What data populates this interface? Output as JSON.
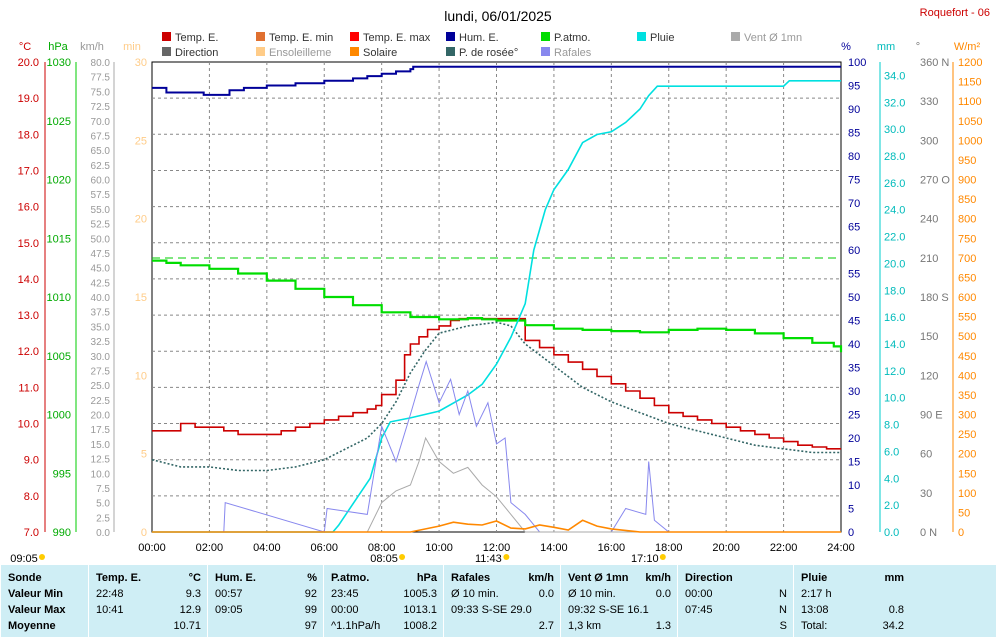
{
  "title": "lundi, 06/01/2025",
  "station": "Roquefort - 06",
  "legend": [
    {
      "label": "Temp. E.",
      "color": "#cc0000"
    },
    {
      "label": "Temp. E. min",
      "color": "#e07030"
    },
    {
      "label": "Temp. E. max",
      "color": "#ff0000"
    },
    {
      "label": "Hum. E.",
      "color": "#000099"
    },
    {
      "label": "P.atmo.",
      "color": "#00dd00"
    },
    {
      "label": "Pluie",
      "color": "#00e0e0"
    },
    {
      "label": "Vent Ø 1mn",
      "color": "#aaaaaa"
    },
    {
      "label": "Direction",
      "color": "#666666"
    },
    {
      "label": "Ensoleilleme",
      "color": "#ffcc88"
    },
    {
      "label": "Solaire",
      "color": "#ff8800"
    },
    {
      "label": "P. de rosée°",
      "color": "#336666"
    },
    {
      "label": "Rafales",
      "color": "#8888ee"
    }
  ],
  "axes": {
    "temp": {
      "unit": "°C",
      "ticks": [
        "20.0",
        "19.0",
        "18.0",
        "17.0",
        "16.0",
        "15.0",
        "14.0",
        "13.0",
        "12.0",
        "11.0",
        "10.0",
        "9.0",
        "8.0",
        "7.0"
      ]
    },
    "pressure": {
      "unit": "hPa",
      "ticks": [
        "1030",
        "1025",
        "1020",
        "1015",
        "1010",
        "1005",
        "1000",
        "995",
        "990"
      ]
    },
    "wind": {
      "unit": "km/h",
      "ticks": [
        "80.0",
        "77.5",
        "75.0",
        "72.5",
        "70.0",
        "67.5",
        "65.0",
        "62.5",
        "60.0",
        "57.5",
        "55.0",
        "52.5",
        "50.0",
        "47.5",
        "45.0",
        "42.5",
        "40.0",
        "37.5",
        "35.0",
        "32.5",
        "30.0",
        "27.5",
        "25.0",
        "22.5",
        "20.0",
        "17.5",
        "15.0",
        "12.5",
        "10.0",
        "7.5",
        "5.0",
        "2.5",
        "0.0"
      ]
    },
    "sunshine": {
      "unit": "min",
      "ticks": [
        "30",
        "25",
        "20",
        "15",
        "10",
        "5",
        "0"
      ]
    },
    "humidity": {
      "unit": "%",
      "ticks": [
        "100",
        "95",
        "90",
        "85",
        "80",
        "75",
        "70",
        "65",
        "60",
        "55",
        "50",
        "45",
        "40",
        "35",
        "30",
        "25",
        "20",
        "15",
        "10",
        "5",
        "0"
      ]
    },
    "rain": {
      "unit": "mm",
      "ticks": [
        "34.0",
        "32.0",
        "30.0",
        "28.0",
        "26.0",
        "24.0",
        "22.0",
        "20.0",
        "18.0",
        "16.0",
        "14.0",
        "12.0",
        "10.0",
        "8.0",
        "6.0",
        "4.0",
        "2.0",
        "0.0"
      ]
    },
    "direction": {
      "unit": "°",
      "ticks": [
        "360 N",
        "330",
        "300",
        "270 O",
        "240",
        "210",
        "180 S",
        "150",
        "120",
        "90  E",
        "60",
        "30",
        "0   N"
      ]
    },
    "solar": {
      "unit": "W/m²",
      "ticks": [
        "1200",
        "1150",
        "1100",
        "1050",
        "1000",
        "950",
        "900",
        "850",
        "800",
        "750",
        "700",
        "650",
        "600",
        "550",
        "500",
        "450",
        "400",
        "350",
        "300",
        "250",
        "200",
        "150",
        "100",
        "50",
        "0"
      ]
    },
    "time": {
      "ticks": [
        "00:00",
        "02:00",
        "04:00",
        "06:00",
        "08:00",
        "10:00",
        "12:00",
        "14:00",
        "16:00",
        "18:00",
        "20:00",
        "22:00",
        "24:00"
      ]
    }
  },
  "sun_markers": [
    "09:05",
    "08:05",
    "11:43",
    "17:10"
  ],
  "chart_data": {
    "type": "line",
    "x_range_hours": [
      0,
      24
    ],
    "series": [
      {
        "name": "Temp. E.",
        "unit": "°C",
        "color": "#cc0000",
        "x": [
          0,
          1,
          1.5,
          2,
          2.5,
          3,
          3.5,
          4,
          4.5,
          5,
          5.5,
          6,
          6.5,
          7,
          7.5,
          7.8,
          8,
          8.5,
          8.8,
          9,
          9.3,
          9.6,
          10,
          10.4,
          10.7,
          11,
          11.5,
          12,
          12.5,
          13,
          13.5,
          14,
          14.5,
          15,
          15.5,
          16,
          16.5,
          17,
          17.5,
          18,
          18.5,
          19,
          19.5,
          20,
          20.5,
          21,
          21.5,
          22,
          22.5,
          23,
          23.5,
          24
        ],
        "values": [
          9.8,
          10.0,
          9.9,
          9.9,
          9.8,
          9.7,
          9.7,
          9.7,
          9.8,
          9.9,
          10.0,
          10.1,
          10.2,
          10.3,
          10.4,
          10.5,
          10.8,
          11.2,
          11.9,
          12.2,
          12.4,
          12.6,
          12.7,
          12.85,
          12.9,
          12.9,
          12.9,
          12.9,
          12.9,
          12.3,
          12.1,
          11.9,
          11.7,
          11.5,
          11.3,
          11.1,
          10.9,
          10.7,
          10.5,
          10.3,
          10.2,
          10.1,
          10.0,
          9.9,
          9.8,
          9.7,
          9.6,
          9.5,
          9.4,
          9.35,
          9.3,
          9.3
        ]
      },
      {
        "name": "P. de rosée°",
        "unit": "°C",
        "color": "#336666",
        "x": [
          0,
          1,
          2,
          3,
          4,
          5,
          6,
          7,
          7.5,
          8,
          8.5,
          9,
          9.5,
          10,
          11,
          12,
          12.5,
          13,
          13.5,
          14,
          15,
          16,
          17,
          18,
          19,
          20,
          21,
          22,
          23,
          24
        ],
        "values": [
          9.0,
          8.8,
          8.8,
          8.7,
          8.7,
          8.8,
          9.0,
          9.4,
          9.6,
          10.0,
          10.6,
          11.4,
          12.0,
          12.5,
          12.7,
          12.8,
          12.7,
          12.2,
          11.9,
          11.6,
          11.0,
          10.6,
          10.3,
          10.0,
          9.8,
          9.6,
          9.4,
          9.3,
          9.2,
          9.2
        ]
      },
      {
        "name": "Hum. E.",
        "unit": "%",
        "color": "#000099",
        "x": [
          0,
          0.5,
          1,
          1.8,
          2.7,
          3.2,
          4,
          4.5,
          5,
          5.5,
          6,
          6.5,
          7,
          7.5,
          8,
          8.5,
          9,
          9.1,
          10,
          12,
          14,
          16,
          18,
          20,
          22,
          24
        ],
        "values": [
          94.5,
          93.5,
          93.5,
          93,
          94,
          94.5,
          95,
          95,
          95.5,
          95.5,
          96,
          96,
          96.5,
          97,
          97.5,
          98,
          98.5,
          99,
          99,
          99,
          99,
          99,
          99,
          99,
          99,
          99
        ]
      },
      {
        "name": "P.atmo.",
        "unit": "hPa",
        "color": "#00dd00",
        "x": [
          0,
          0.5,
          1,
          2,
          3,
          4,
          5,
          6,
          7,
          8,
          9,
          10,
          11,
          11.5,
          12,
          13,
          14,
          15,
          16,
          17,
          18,
          19,
          20,
          21,
          22,
          23,
          23.75,
          24
        ],
        "values": [
          1013.1,
          1012.9,
          1012.7,
          1012.4,
          1012.0,
          1011.4,
          1010.7,
          1010.0,
          1009.3,
          1008.7,
          1008.3,
          1008.1,
          1008.2,
          1008.1,
          1008.0,
          1007.6,
          1007.3,
          1007.2,
          1007.1,
          1007.0,
          1007.2,
          1007.3,
          1007.2,
          1006.9,
          1006.5,
          1006.1,
          1005.8,
          1005.3
        ]
      },
      {
        "name": "Pluie",
        "unit": "mm",
        "color": "#00e0e0",
        "x": [
          0,
          6.3,
          6.5,
          7,
          7.6,
          8,
          8.3,
          9,
          10,
          11,
          11.5,
          12,
          12.5,
          13,
          13.3,
          13.7,
          14,
          14.5,
          15,
          15.5,
          16,
          16.5,
          17,
          17.3,
          17.6,
          18,
          19,
          20,
          21,
          22,
          22.2,
          23,
          24
        ],
        "values": [
          0,
          0,
          0.5,
          2.1,
          4.0,
          7.0,
          8.2,
          8.5,
          9.0,
          10.2,
          11.0,
          12.5,
          14.5,
          17.0,
          21.0,
          24.0,
          25.5,
          27.0,
          29.0,
          29.6,
          29.8,
          30.5,
          31.5,
          32.5,
          33.2,
          33.2,
          33.2,
          33.2,
          33.2,
          33.2,
          33.6,
          33.6,
          33.6
        ]
      },
      {
        "name": "Rafales",
        "unit": "km/h",
        "color": "#8888ee",
        "x": [
          0,
          2.5,
          2.55,
          6,
          6.1,
          7.5,
          8,
          8.5,
          9,
          9.3,
          9.55,
          10,
          10.4,
          10.7,
          11,
          11.3,
          11.7,
          12,
          12.3,
          12.5,
          13,
          13.5,
          14,
          16,
          16.5,
          17.2,
          17.3,
          17.5,
          18,
          24
        ],
        "values": [
          0,
          0,
          5,
          0,
          4,
          3,
          18,
          12,
          20,
          25,
          29,
          22,
          26,
          20,
          24,
          18,
          22,
          15,
          16,
          5,
          3,
          0,
          0,
          0,
          4,
          3,
          12,
          2,
          0,
          0
        ]
      },
      {
        "name": "Vent Ø 1mn",
        "unit": "km/h",
        "color": "#aaaaaa",
        "x": [
          0,
          7.5,
          8,
          8.5,
          9,
          9.3,
          9.53,
          10,
          10.5,
          11,
          11.5,
          12,
          12.5,
          13,
          24
        ],
        "values": [
          0,
          0,
          5,
          7,
          8,
          12,
          16,
          12,
          10,
          11,
          8,
          6,
          3,
          0,
          0
        ]
      },
      {
        "name": "Solaire",
        "unit": "W/m²",
        "color": "#ff8800",
        "x": [
          0,
          9,
          10,
          10.5,
          11,
          11.5,
          12,
          12.5,
          13,
          13.5,
          14,
          14.5,
          15,
          15.5,
          16,
          17,
          24
        ],
        "values": [
          0,
          0,
          15,
          25,
          20,
          18,
          28,
          10,
          8,
          18,
          12,
          5,
          30,
          15,
          8,
          0,
          0
        ]
      }
    ]
  },
  "table": {
    "columns": [
      {
        "header": "Sonde",
        "unit": ""
      },
      {
        "header": "Temp. E.",
        "unit": "°C"
      },
      {
        "header": "Hum. E.",
        "unit": "%"
      },
      {
        "header": "P.atmo.",
        "unit": "hPa"
      },
      {
        "header": "Rafales",
        "unit": "km/h"
      },
      {
        "header": "Vent Ø 1mn",
        "unit": "km/h"
      },
      {
        "header": "Direction",
        "unit": ""
      },
      {
        "header": "Pluie",
        "unit": "mm"
      }
    ],
    "rows": [
      {
        "label": "Valeur Min",
        "cells": [
          [
            "22:48",
            "9.3"
          ],
          [
            "00:57",
            "92"
          ],
          [
            "23:45",
            "1005.3"
          ],
          [
            "Ø 10 min.",
            "0.0"
          ],
          [
            "Ø 10 min.",
            "0.0"
          ],
          [
            "00:00",
            "N"
          ],
          [
            "2:17 h",
            ""
          ]
        ]
      },
      {
        "label": "Valeur Max",
        "cells": [
          [
            "10:41",
            "12.9"
          ],
          [
            "09:05",
            "99"
          ],
          [
            "00:00",
            "1013.1"
          ],
          [
            "09:33   S-SE 29.0",
            ""
          ],
          [
            "09:32   S-SE 16.1",
            ""
          ],
          [
            "07:45",
            "N"
          ],
          [
            "13:08",
            "0.8"
          ]
        ]
      },
      {
        "label": "Moyenne",
        "cells": [
          [
            "",
            "10.71"
          ],
          [
            "",
            "97"
          ],
          [
            "^1.1hPa/h",
            "1008.2"
          ],
          [
            "",
            "2.7"
          ],
          [
            "1,3 km",
            "1.3"
          ],
          [
            "",
            "S"
          ],
          [
            "Total:",
            "34.2"
          ]
        ]
      }
    ]
  }
}
